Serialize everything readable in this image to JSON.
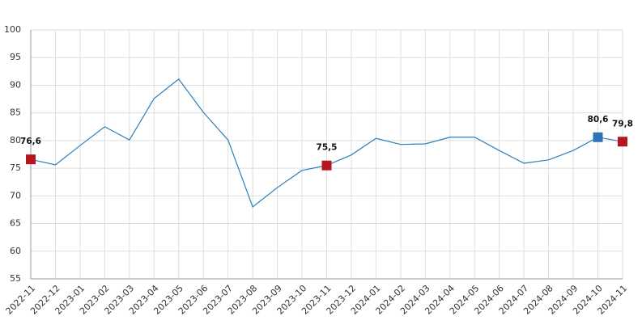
{
  "chart_data": {
    "type": "line",
    "categories": [
      "2022-11",
      "2022-12",
      "2023-01",
      "2023-02",
      "2023-03",
      "2023-04",
      "2023-05",
      "2023-06",
      "2023-07",
      "2023-08",
      "2023-09",
      "2023-10",
      "2023-11",
      "2023-12",
      "2024-01",
      "2024-02",
      "2024-03",
      "2024-04",
      "2024-05",
      "2024-06",
      "2024-07",
      "2024-08",
      "2024-09",
      "2024-10",
      "2024-11"
    ],
    "values": [
      76.6,
      75.6,
      79.1,
      82.5,
      80.1,
      87.6,
      91.1,
      85.1,
      80.1,
      68.0,
      71.5,
      74.6,
      75.5,
      77.4,
      80.4,
      79.3,
      79.4,
      80.6,
      80.6,
      78.2,
      75.9,
      76.5,
      78.2,
      80.6,
      79.8
    ],
    "value_labels": [
      "76,6",
      null,
      null,
      null,
      null,
      null,
      null,
      null,
      null,
      null,
      null,
      null,
      "75,5",
      null,
      null,
      null,
      null,
      null,
      null,
      null,
      null,
      null,
      null,
      "80,6",
      "79,8"
    ],
    "color": "#2c7fb8",
    "highlights": [
      {
        "index": 0,
        "color": "#b5161e"
      },
      {
        "index": 12,
        "color": "#b5161e"
      },
      {
        "index": 23,
        "color": "#2e75b6"
      },
      {
        "index": 24,
        "color": "#b5161e"
      }
    ],
    "ylim": [
      55,
      100
    ],
    "yticks": [
      55,
      60,
      65,
      70,
      75,
      80,
      85,
      90,
      95,
      100
    ],
    "grid": true
  }
}
